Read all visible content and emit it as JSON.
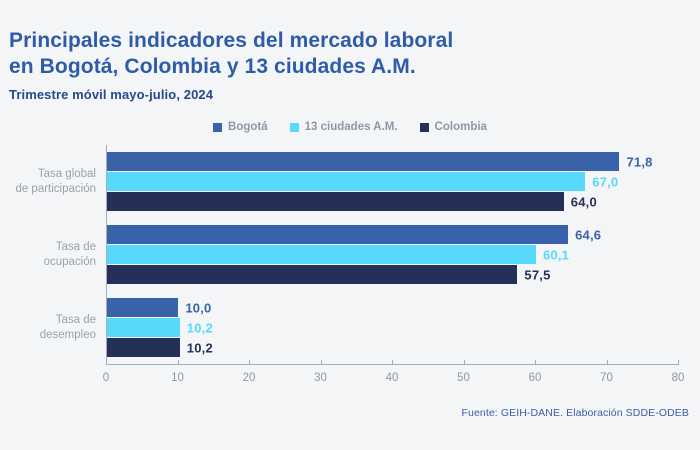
{
  "page": {
    "background": "#f4f5f7"
  },
  "header": {
    "title_line1": "Principales indicadores del mercado laboral",
    "title_line2": "en Bogotá, Colombia y 13 ciudades A.M.",
    "subtitle": "Trimestre móvil mayo-julio, 2024"
  },
  "chart_data": {
    "type": "bar",
    "orientation": "horizontal",
    "title": "Principales indicadores del mercado laboral en Bogotá, Colombia y 13 ciudades A.M.",
    "subtitle": "Trimestre móvil mayo-julio, 2024",
    "categories": [
      "Tasa global de participación",
      "Tasa de ocupación",
      "Tasa de desempleo"
    ],
    "category_lines": [
      [
        "Tasa global",
        "de participación"
      ],
      [
        "Tasa de",
        "ocupación"
      ],
      [
        "Tasa de",
        "desempleo"
      ]
    ],
    "series": [
      {
        "name": "Bogotá",
        "color": "#3a62a8",
        "values": [
          71.8,
          64.6,
          10.0
        ],
        "labels": [
          "71,8",
          "64,6",
          "10,0"
        ]
      },
      {
        "name": "13 ciudades A.M.",
        "color": "#57d9fc",
        "values": [
          67.0,
          60.1,
          10.2
        ],
        "labels": [
          "67,0",
          "60,1",
          "10,2"
        ]
      },
      {
        "name": "Colombia",
        "color": "#243057",
        "values": [
          64.0,
          57.5,
          10.2
        ],
        "labels": [
          "64,0",
          "57,5",
          "10,2"
        ]
      }
    ],
    "xlim": [
      0,
      80
    ],
    "x_ticks": [
      "0",
      "10",
      "20",
      "30",
      "40",
      "50",
      "60",
      "70",
      "80"
    ],
    "legend_position": "top-center",
    "grid": false,
    "axis_color": "#a6acb8",
    "text_color_muted": "#8f96a5"
  },
  "footer": {
    "source": "Fuente: GEIH-DANE. Elaboración SDDE-ODEB"
  }
}
